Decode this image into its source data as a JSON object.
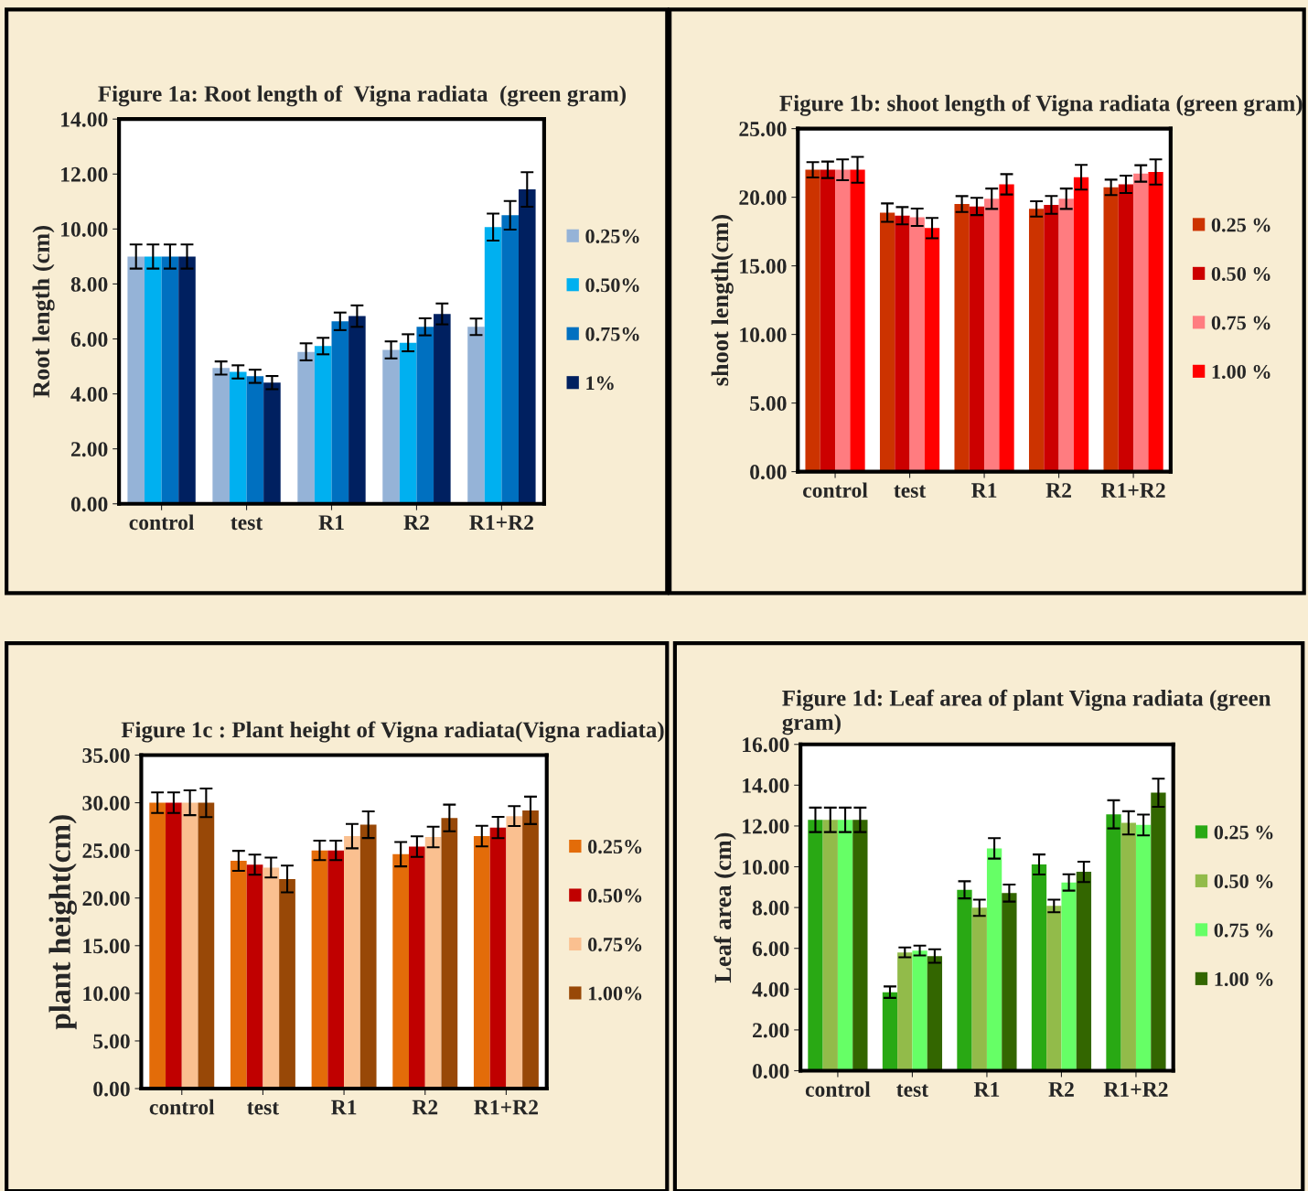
{
  "chart_data": [
    {
      "type": "bar",
      "title": "Figure 1a: Root length of  Vigna radiata  (green gram)",
      "ylabel": "Root length (cm)",
      "categories": [
        "control",
        "test",
        "R1",
        "R2",
        "R1+R2"
      ],
      "ylim": [
        0,
        14
      ],
      "yticks": [
        {
          "value": 0,
          "label": "0.00"
        },
        {
          "value": 2,
          "label": "2.00"
        },
        {
          "value": 4,
          "label": "4.00"
        },
        {
          "value": 6,
          "label": "6.00"
        },
        {
          "value": 8,
          "label": "8.00"
        },
        {
          "value": 10,
          "label": "10.00"
        },
        {
          "value": 12,
          "label": "12.00"
        },
        {
          "value": 14,
          "label": "14.00"
        }
      ],
      "legend": "right",
      "grid": false,
      "series": [
        {
          "name": "0.25%",
          "color": "#95b3d7",
          "values": [
            9.0,
            4.94,
            5.53,
            5.6,
            6.44
          ],
          "errors": [
            0.44,
            0.24,
            0.31,
            0.31,
            0.3
          ]
        },
        {
          "name": "0.50%",
          "color": "#00b0f0",
          "values": [
            9.0,
            4.8,
            5.74,
            5.86,
            10.07
          ],
          "errors": [
            0.44,
            0.24,
            0.3,
            0.31,
            0.49
          ]
        },
        {
          "name": "0.75%",
          "color": "#0070c0",
          "values": [
            9.0,
            4.64,
            6.64,
            6.44,
            10.5
          ],
          "errors": [
            0.44,
            0.24,
            0.32,
            0.31,
            0.52
          ]
        },
        {
          "name": "1%",
          "color": "#002060",
          "values": [
            9.0,
            4.41,
            6.83,
            6.91,
            11.44
          ],
          "errors": [
            0.44,
            0.24,
            0.39,
            0.38,
            0.63
          ]
        }
      ]
    },
    {
      "type": "bar",
      "title": "Figure 1b: shoot length of Vigna radiata (green gram)",
      "ylabel": "shoot length(cm)",
      "categories": [
        "control",
        "test",
        "R1",
        "R2",
        "R1+R2"
      ],
      "ylim": [
        0,
        25
      ],
      "yticks": [
        {
          "value": 0,
          "label": "0.00"
        },
        {
          "value": 5,
          "label": "5.00"
        },
        {
          "value": 10,
          "label": "10.00"
        },
        {
          "value": 15,
          "label": "15.00"
        },
        {
          "value": 20,
          "label": "20.00"
        },
        {
          "value": 25,
          "label": "25.00"
        }
      ],
      "legend": "right",
      "grid": false,
      "series": [
        {
          "name": "0.25 %",
          "color": "#cc3300",
          "values": [
            22.0,
            18.88,
            19.5,
            19.15,
            20.72
          ],
          "errors": [
            0.56,
            0.67,
            0.58,
            0.56,
            0.56
          ]
        },
        {
          "name": "0.50 %",
          "color": "#cc0000",
          "values": [
            22.0,
            18.65,
            19.33,
            19.44,
            20.94
          ],
          "errors": [
            0.6,
            0.63,
            0.63,
            0.65,
            0.63
          ]
        },
        {
          "name": "0.75 %",
          "color": "#ff7c80",
          "values": [
            22.0,
            18.54,
            19.89,
            19.89,
            21.73
          ],
          "errors": [
            0.76,
            0.63,
            0.74,
            0.74,
            0.6
          ]
        },
        {
          "name": "1.00 %",
          "color": "#ff0000",
          "values": [
            22.0,
            17.75,
            20.94,
            21.46,
            21.84
          ],
          "errors": [
            0.94,
            0.74,
            0.74,
            0.9,
            0.92
          ]
        }
      ]
    },
    {
      "type": "bar",
      "title": "Figure 1c : Plant height of Vigna radiata(Vigna radiata)",
      "ylabel": "plant height(cm)",
      "categories": [
        "control",
        "test",
        "R1",
        "R2",
        "R1+R2"
      ],
      "ylim": [
        0,
        35
      ],
      "yticks": [
        {
          "value": 0,
          "label": "0.00"
        },
        {
          "value": 5,
          "label": "5.00"
        },
        {
          "value": 10,
          "label": "10.00"
        },
        {
          "value": 15,
          "label": "15.00"
        },
        {
          "value": 20,
          "label": "20.00"
        },
        {
          "value": 25,
          "label": "25.00"
        },
        {
          "value": 30,
          "label": "30.00"
        },
        {
          "value": 35,
          "label": "35.00"
        }
      ],
      "legend": "right",
      "grid": false,
      "series": [
        {
          "name": "0.25%",
          "color": "#e36c09",
          "values": [
            30.0,
            23.9,
            25.0,
            24.6,
            26.5
          ],
          "errors": [
            1.08,
            1.05,
            1.02,
            1.28,
            1.08
          ]
        },
        {
          "name": "0.50%",
          "color": "#c00000",
          "values": [
            30.0,
            23.5,
            25.0,
            25.4,
            27.4
          ],
          "errors": [
            1.08,
            1.05,
            1.02,
            1.08,
            1.12
          ]
        },
        {
          "name": "0.75%",
          "color": "#fac090",
          "values": [
            30.0,
            23.2,
            26.5,
            26.4,
            28.6
          ],
          "errors": [
            1.3,
            1.05,
            1.28,
            1.08,
            1.05
          ]
        },
        {
          "name": "1.00%",
          "color": "#984807",
          "values": [
            30.0,
            22.0,
            27.7,
            28.4,
            29.2
          ],
          "errors": [
            1.5,
            1.4,
            1.4,
            1.4,
            1.44
          ]
        }
      ]
    },
    {
      "type": "bar",
      "title": "Figure 1d: Leaf area of plant Vigna radiata (green gram)",
      "ylabel": "Leaf area (cm)",
      "categories": [
        "control",
        "test",
        "R1",
        "R2",
        "R1+R2"
      ],
      "ylim": [
        0,
        16
      ],
      "yticks": [
        {
          "value": 0,
          "label": "0.00"
        },
        {
          "value": 2,
          "label": "2.00"
        },
        {
          "value": 4,
          "label": "4.00"
        },
        {
          "value": 6,
          "label": "6.00"
        },
        {
          "value": 8,
          "label": "8.00"
        },
        {
          "value": 10,
          "label": "10.00"
        },
        {
          "value": 12,
          "label": "12.00"
        },
        {
          "value": 14,
          "label": "14.00"
        },
        {
          "value": 16,
          "label": "16.00"
        }
      ],
      "legend": "right",
      "grid": false,
      "series": [
        {
          "name": "0.25 %",
          "color": "#29a914",
          "values": [
            12.3,
            3.85,
            8.87,
            10.11,
            12.57
          ],
          "errors": [
            0.6,
            0.28,
            0.42,
            0.49,
            0.69
          ]
        },
        {
          "name": "0.50 %",
          "color": "#92bb4a",
          "values": [
            12.3,
            5.8,
            7.99,
            8.08,
            12.15
          ],
          "errors": [
            0.6,
            0.24,
            0.4,
            0.31,
            0.57
          ]
        },
        {
          "name": "0.75 %",
          "color": "#66ff66",
          "values": [
            12.3,
            5.89,
            10.9,
            9.23,
            12.05
          ],
          "errors": [
            0.6,
            0.24,
            0.5,
            0.4,
            0.51
          ]
        },
        {
          "name": "1.00 %",
          "color": "#336600",
          "values": [
            12.3,
            5.62,
            8.71,
            9.75,
            13.63
          ],
          "errors": [
            0.6,
            0.33,
            0.42,
            0.5,
            0.69
          ]
        }
      ]
    }
  ]
}
